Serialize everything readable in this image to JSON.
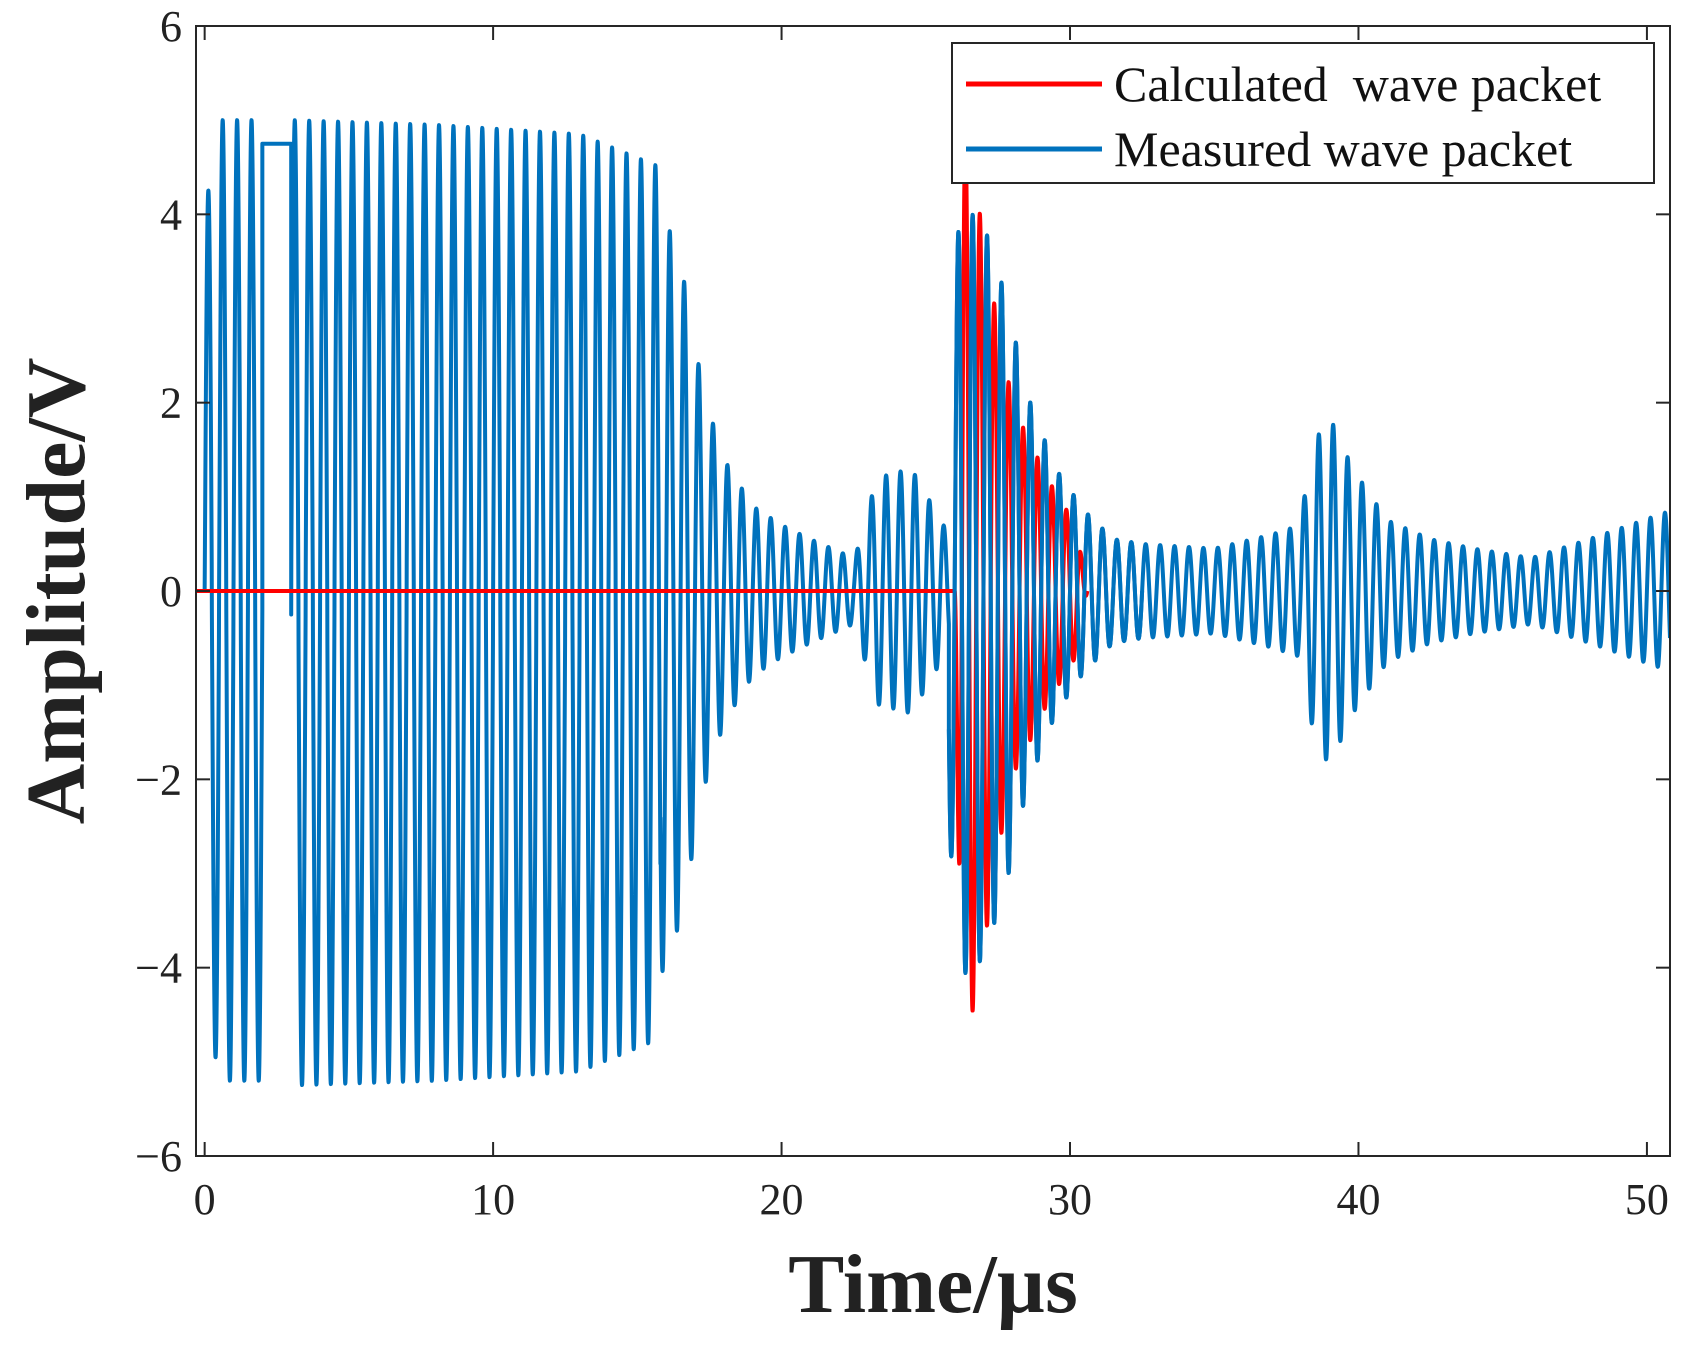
{
  "chart_data": {
    "type": "line",
    "title": "",
    "xlabel": "Time/µs",
    "ylabel": "Amplitude/V",
    "xlim": [
      -0.3,
      50.8
    ],
    "ylim": [
      -6,
      6
    ],
    "xticks": [
      0,
      10,
      20,
      30,
      40,
      50
    ],
    "yticks": [
      -6,
      -4,
      -2,
      0,
      2,
      4,
      6
    ],
    "xtick_labels": [
      "0",
      "10",
      "20",
      "30",
      "40",
      "50"
    ],
    "ytick_labels": [
      "−6",
      "−4",
      "−2",
      "0",
      "2",
      "4",
      "6"
    ],
    "grid": false,
    "legend_position": "top-right",
    "series": [
      {
        "name": "Calculated  wave packet",
        "color": "#ff0000",
        "description": "zero until ~26 µs, then a decaying wave packet",
        "baseline": 0,
        "packet": {
          "start": 26.0,
          "end": 30.6,
          "frequency_mhz": 2.0,
          "envelope": [
            [
              26.0,
              0.0
            ],
            [
              26.25,
              5.0
            ],
            [
              26.6,
              4.5
            ],
            [
              27.1,
              3.6
            ],
            [
              27.6,
              2.6
            ],
            [
              28.1,
              1.9
            ],
            [
              28.6,
              1.6
            ],
            [
              29.2,
              1.2
            ],
            [
              29.8,
              0.9
            ],
            [
              30.2,
              0.7
            ],
            [
              30.6,
              0.0
            ]
          ]
        }
      },
      {
        "name": "Measured wave packet",
        "color": "#0072bd",
        "description": "saturated excitation burst then decaying echoes",
        "segments": [
          {
            "start": 0.0,
            "end": 2.0,
            "frequency_mhz": 2.0,
            "offset": -0.2,
            "envelope": [
              [
                0.0,
                4.0
              ],
              [
                0.5,
                5.0
              ],
              [
                2.0,
                5.0
              ]
            ]
          },
          {
            "kind": "flat",
            "start": 2.0,
            "end": 3.0,
            "value": 4.75
          },
          {
            "start": 3.0,
            "end": 15.8,
            "frequency_mhz": 2.0,
            "offset": -0.25,
            "envelope": [
              [
                3.0,
                5.0
              ],
              [
                8.0,
                4.95
              ],
              [
                13.0,
                4.85
              ],
              [
                15.8,
                4.5
              ]
            ]
          },
          {
            "start": 15.8,
            "end": 22.5,
            "frequency_mhz": 2.0,
            "offset": 0.0,
            "envelope": [
              [
                15.8,
                4.1
              ],
              [
                16.5,
                3.5
              ],
              [
                17.3,
                2.1
              ],
              [
                18.0,
                1.4
              ],
              [
                19.0,
                0.9
              ],
              [
                20.0,
                0.7
              ],
              [
                21.0,
                0.55
              ],
              [
                22.5,
                0.35
              ]
            ]
          },
          {
            "start": 22.5,
            "end": 25.8,
            "frequency_mhz": 2.0,
            "offset": 0.0,
            "envelope": [
              [
                22.5,
                0.3
              ],
              [
                23.3,
                1.2
              ],
              [
                24.5,
                1.3
              ],
              [
                25.8,
                0.6
              ]
            ]
          },
          {
            "start": 25.8,
            "end": 32.5,
            "frequency_mhz": 2.0,
            "offset": 0.0,
            "envelope": [
              [
                25.8,
                2.5
              ],
              [
                26.2,
                4.1
              ],
              [
                27.0,
                3.9
              ],
              [
                27.8,
                3.1
              ],
              [
                28.5,
                2.1
              ],
              [
                29.5,
                1.3
              ],
              [
                30.5,
                0.85
              ],
              [
                31.5,
                0.55
              ],
              [
                32.5,
                0.5
              ]
            ]
          },
          {
            "start": 32.5,
            "end": 38.0,
            "frequency_mhz": 2.0,
            "offset": 0.0,
            "envelope": [
              [
                32.5,
                0.5
              ],
              [
                35.0,
                0.45
              ],
              [
                37.0,
                0.6
              ],
              [
                38.0,
                0.7
              ]
            ]
          },
          {
            "start": 38.0,
            "end": 50.8,
            "frequency_mhz": 2.0,
            "offset": 0.0,
            "envelope": [
              [
                38.0,
                0.8
              ],
              [
                38.5,
                1.6
              ],
              [
                39.0,
                1.85
              ],
              [
                39.8,
                1.3
              ],
              [
                41.0,
                0.75
              ],
              [
                42.5,
                0.55
              ],
              [
                44.0,
                0.45
              ],
              [
                46.0,
                0.35
              ],
              [
                48.0,
                0.55
              ],
              [
                50.8,
                0.85
              ]
            ]
          }
        ]
      }
    ]
  }
}
